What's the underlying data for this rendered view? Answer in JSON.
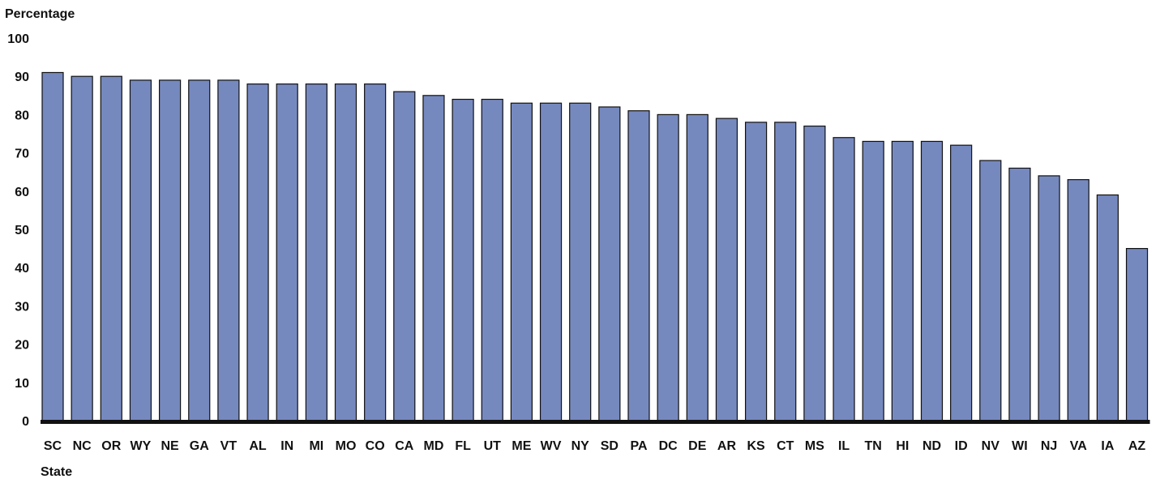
{
  "chart_data": {
    "type": "bar",
    "ylabel": "Percentage",
    "xlabel": "State",
    "ylim": [
      0,
      100
    ],
    "yticks": [
      0,
      10,
      20,
      30,
      40,
      50,
      60,
      70,
      80,
      90,
      100
    ],
    "categories": [
      "SC",
      "NC",
      "OR",
      "WY",
      "NE",
      "GA",
      "VT",
      "AL",
      "IN",
      "MI",
      "MO",
      "CO",
      "CA",
      "MD",
      "FL",
      "UT",
      "ME",
      "WV",
      "NY",
      "SD",
      "PA",
      "DC",
      "DE",
      "AR",
      "KS",
      "CT",
      "MS",
      "IL",
      "TN",
      "HI",
      "ND",
      "ID",
      "NV",
      "WI",
      "NJ",
      "VA",
      "IA",
      "AZ"
    ],
    "values": [
      91,
      90,
      90,
      89,
      89,
      89,
      89,
      88,
      88,
      88,
      88,
      88,
      86,
      85,
      84,
      84,
      83,
      83,
      83,
      82,
      81,
      80,
      80,
      79,
      78,
      78,
      77,
      74,
      73,
      73,
      73,
      72,
      68,
      66,
      64,
      63,
      59,
      45
    ],
    "grid": false,
    "legend": "none",
    "colors": {
      "bar_fill": "#7689BF",
      "bar_stroke": "#111111",
      "baseline": "#111111",
      "text": "#111111"
    }
  }
}
